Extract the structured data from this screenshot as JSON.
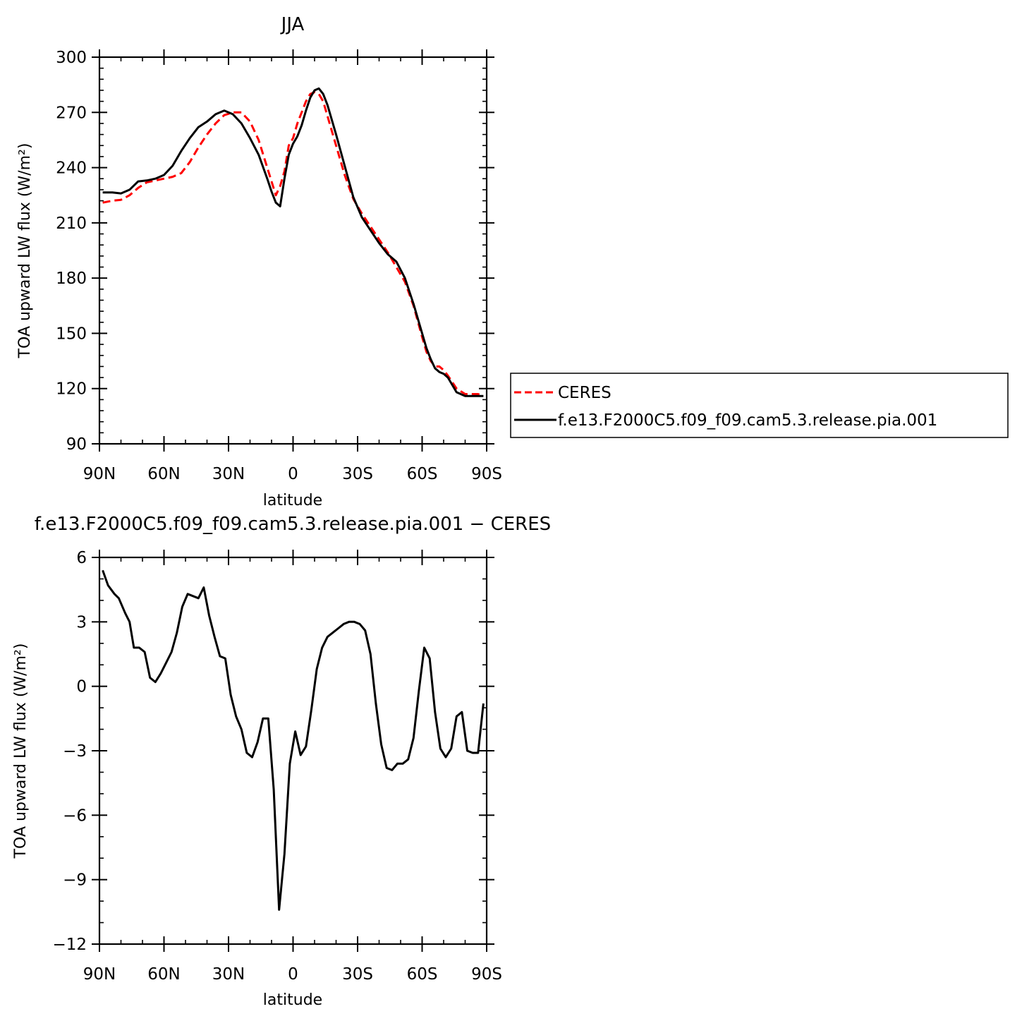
{
  "chart_data": [
    {
      "type": "line",
      "title": "JJA",
      "xlabel": "latitude",
      "ylabel": "TOA upward LW flux (W/m²)",
      "xlim": [
        90,
        -90
      ],
      "ylim": [
        90,
        300
      ],
      "xticks": [
        {
          "value": 90,
          "label": "90N"
        },
        {
          "value": 60,
          "label": "60N"
        },
        {
          "value": 30,
          "label": "30N"
        },
        {
          "value": 0,
          "label": "0"
        },
        {
          "value": -30,
          "label": "30S"
        },
        {
          "value": -60,
          "label": "60S"
        },
        {
          "value": -90,
          "label": "90S"
        }
      ],
      "yticks": [
        {
          "value": 90,
          "label": "90"
        },
        {
          "value": 120,
          "label": "120"
        },
        {
          "value": 150,
          "label": "150"
        },
        {
          "value": 180,
          "label": "180"
        },
        {
          "value": 210,
          "label": "210"
        },
        {
          "value": 240,
          "label": "240"
        },
        {
          "value": 270,
          "label": "270"
        },
        {
          "value": 300,
          "label": "300"
        }
      ],
      "legend": "outside-right",
      "series": [
        {
          "name": "CERES",
          "color": "#ff0000",
          "dash": "dashed",
          "x": [
            88.5,
            84,
            80,
            76,
            72,
            68,
            64,
            60,
            56,
            52,
            48,
            44,
            40,
            36,
            32,
            28,
            24,
            20,
            16,
            12,
            8,
            6,
            4,
            2,
            0,
            -2,
            -4,
            -6,
            -8,
            -10,
            -12,
            -14,
            -16,
            -18,
            -20,
            -24,
            -28,
            -32,
            -36,
            -40,
            -44,
            -48,
            -52,
            -56,
            -60,
            -62,
            -64,
            -66,
            -68,
            -70,
            -72,
            -76,
            -80,
            -84,
            -86,
            -88.5
          ],
          "y": [
            221,
            222,
            222.5,
            225,
            229,
            232,
            233,
            234,
            235,
            237,
            243,
            251,
            258,
            264,
            268.5,
            270,
            270,
            265,
            255,
            240,
            225,
            230,
            238,
            252,
            256,
            264,
            270,
            276,
            280,
            281,
            280,
            276,
            268,
            260,
            252,
            236,
            223,
            215,
            208,
            201,
            194,
            186,
            178,
            165,
            148,
            140,
            135,
            132,
            132,
            130,
            127,
            120,
            117,
            117,
            117,
            116
          ]
        },
        {
          "name": "f.e13.F2000C5.f09_f09.cam5.3.release.pia.001",
          "color": "#000000",
          "dash": "solid",
          "x": [
            88.5,
            84,
            80,
            76,
            72,
            68,
            64,
            60,
            56,
            52,
            48,
            44,
            40,
            36,
            32,
            30,
            28,
            24,
            20,
            16,
            12,
            10,
            8,
            6,
            4,
            2,
            0,
            -2,
            -4,
            -6,
            -8,
            -10,
            -12,
            -14,
            -16,
            -18,
            -20,
            -24,
            -28,
            -32,
            -36,
            -40,
            -44,
            -48,
            -52,
            -56,
            -60,
            -62,
            -64,
            -66,
            -68,
            -70,
            -72,
            -76,
            -80,
            -84,
            -86,
            -88.5
          ],
          "y": [
            226.5,
            226.5,
            226,
            228,
            232.5,
            233,
            234,
            236,
            241,
            249,
            256,
            262,
            265,
            269,
            271,
            270,
            269,
            264,
            256,
            247,
            234,
            227,
            221,
            219,
            234,
            247,
            253,
            257,
            263,
            271,
            278,
            282,
            283,
            280,
            274,
            266,
            258,
            241,
            224,
            213,
            206,
            199,
            193,
            189,
            180,
            166,
            150,
            142,
            136,
            131,
            129,
            128,
            126,
            118,
            116,
            116,
            116,
            116
          ]
        }
      ]
    },
    {
      "type": "line",
      "title": "f.e13.F2000C5.f09_f09.cam5.3.release.pia.001 − CERES",
      "xlabel": "latitude",
      "ylabel": "TOA upward LW flux (W/m²)",
      "xlim": [
        90,
        -90
      ],
      "ylim": [
        -12,
        6
      ],
      "xticks": [
        {
          "value": 90,
          "label": "90N"
        },
        {
          "value": 60,
          "label": "60N"
        },
        {
          "value": 30,
          "label": "30N"
        },
        {
          "value": 0,
          "label": "0"
        },
        {
          "value": -30,
          "label": "30S"
        },
        {
          "value": -60,
          "label": "60S"
        },
        {
          "value": -90,
          "label": "90S"
        }
      ],
      "yticks": [
        {
          "value": -12,
          "label": "−12"
        },
        {
          "value": -9,
          "label": "−9"
        },
        {
          "value": -6,
          "label": "−6"
        },
        {
          "value": -3,
          "label": "−3"
        },
        {
          "value": 0,
          "label": "0"
        },
        {
          "value": 3,
          "label": "3"
        },
        {
          "value": 6,
          "label": "6"
        }
      ],
      "series": [
        {
          "color": "#000000",
          "dash": "solid",
          "x": [
            88.5,
            86,
            83,
            81,
            78,
            76,
            74,
            71.5,
            69,
            66.5,
            64,
            61.5,
            59,
            56.5,
            54,
            51.5,
            49,
            46.5,
            44,
            41.5,
            39,
            36.5,
            34,
            31.5,
            29,
            26.5,
            24,
            21.5,
            19,
            16.5,
            14,
            11.5,
            9,
            6.5,
            4,
            1.5,
            -1,
            -3.5,
            -6,
            -8.5,
            -11,
            -13.5,
            -16,
            -18.5,
            -21,
            -23.5,
            -26,
            -28.5,
            -31,
            -33.5,
            -36,
            -38.5,
            -41,
            -43.5,
            -46,
            -48.5,
            -51,
            -53.5,
            -56,
            -58.5,
            -61,
            -63.5,
            -66,
            -68.5,
            -71,
            -73.5,
            -76,
            -78.5,
            -81,
            -83.5,
            -86,
            -88.5
          ],
          "y": [
            5.4,
            4.7,
            4.3,
            4.1,
            3.4,
            3.0,
            1.8,
            1.8,
            1.6,
            0.4,
            0.2,
            0.6,
            1.1,
            1.6,
            2.5,
            3.7,
            4.3,
            4.2,
            4.1,
            4.6,
            3.3,
            2.3,
            1.4,
            1.3,
            -0.4,
            -1.4,
            -2.0,
            -3.1,
            -3.3,
            -2.6,
            -1.5,
            -1.5,
            -4.8,
            -10.4,
            -7.8,
            -3.6,
            -2.1,
            -3.2,
            -2.8,
            -1.1,
            0.8,
            1.8,
            2.3,
            2.5,
            2.7,
            2.9,
            3.0,
            3.0,
            2.9,
            2.6,
            1.5,
            -0.8,
            -2.7,
            -3.8,
            -3.9,
            -3.6,
            -3.6,
            -3.4,
            -2.4,
            -0.2,
            1.8,
            1.3,
            -1.2,
            -2.9,
            -3.3,
            -2.9,
            -1.4,
            -1.2,
            -3.0,
            -3.1,
            -3.1,
            -0.8
          ]
        }
      ]
    }
  ]
}
